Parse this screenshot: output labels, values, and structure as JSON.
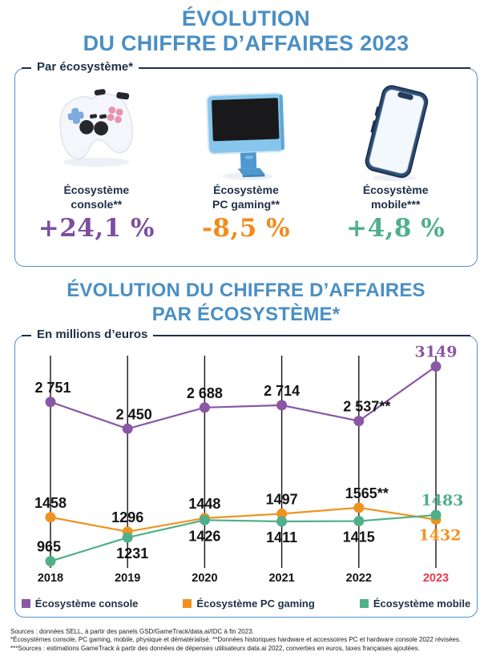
{
  "header": {
    "title_line1": "ÉVOLUTION",
    "title_line2": "DU CHIFFRE D’AFFAIRES 2023",
    "accent_color": "#4a8fc4"
  },
  "ecosystem_panel": {
    "label": "Par écosystème*",
    "items": [
      {
        "icon": "game-controller",
        "name_line1": "Écosystème",
        "name_line2": "console**",
        "change": "+24,1 %",
        "color": "#7d4fa0"
      },
      {
        "icon": "desktop-pc",
        "name_line1": "Écosystème",
        "name_line2": "PC gaming**",
        "change": "-8,5 %",
        "color": "#f08c1c"
      },
      {
        "icon": "smartphone",
        "name_line1": "Écosystème",
        "name_line2": "mobile***",
        "change": "+4,8 %",
        "color": "#4fb08a"
      }
    ]
  },
  "section2": {
    "title_line1": "ÉVOLUTION DU CHIFFRE D’AFFAIRES",
    "title_line2": "PAR ÉCOSYSTÈME*"
  },
  "chart_panel": {
    "label": "En millions d’euros"
  },
  "chart_data": {
    "type": "line",
    "title": "ÉVOLUTION DU CHIFFRE D’AFFAIRES PAR ÉCOSYSTÈME*",
    "ylabel": "En millions d'euros",
    "x": [
      2018,
      2019,
      2020,
      2021,
      2022,
      2023
    ],
    "x_labels": [
      "2018",
      "2019",
      "2020",
      "2021",
      "2022",
      "2023"
    ],
    "highlight_last_x_color": "#e8394f",
    "ylim": [
      890,
      3270
    ],
    "grid": "vertical-line-per-x",
    "legend_position": "bottom",
    "series": [
      {
        "name": "Écosystème console",
        "color": "#8a57a4",
        "values": [
          2751,
          2450,
          2688,
          2714,
          2537,
          3149
        ],
        "labels": [
          "2 751",
          "2 450",
          "2 688",
          "2 714",
          "2 537**",
          "3149"
        ],
        "label_pos": [
          "above",
          "above",
          "above",
          "above",
          "above",
          "above"
        ],
        "label_dx": [
          3,
          8,
          0,
          0,
          10,
          0
        ]
      },
      {
        "name": "Écosystème PC gaming",
        "color": "#f0921e",
        "values": [
          1458,
          1296,
          1448,
          1497,
          1565,
          1432
        ],
        "labels": [
          "1458",
          "1296",
          "1448",
          "1497",
          "1565**",
          "1432"
        ],
        "label_pos": [
          "above",
          "above",
          "above",
          "above",
          "above",
          "below"
        ],
        "label_dx": [
          0,
          0,
          0,
          0,
          10,
          5
        ]
      },
      {
        "name": "Écosystème mobile",
        "color": "#4fb08a",
        "values": [
          965,
          1231,
          1426,
          1411,
          1415,
          1483
        ],
        "labels": [
          "965",
          "1231",
          "1426",
          "1411",
          "1415",
          "1483"
        ],
        "label_pos": [
          "above",
          "below",
          "below",
          "below",
          "below",
          "above"
        ],
        "label_dx": [
          -2,
          6,
          0,
          0,
          0,
          8
        ]
      }
    ]
  },
  "footer": {
    "line1": "Sources : données SELL, à partir des panels GSD/GameTrack/data.ai/IDC à fin 2023.",
    "line2": "*Écosystèmes console, PC gaming, mobile, physique et dématérialisé. **Données historiques hardware et accessoires PC et hardware console 2022 révisées.",
    "line3": "***Sources : estimations GameTrack à partir des données de dépenses utilisateurs data.ai 2022, converties en euros, taxes françaises ajoutées."
  }
}
